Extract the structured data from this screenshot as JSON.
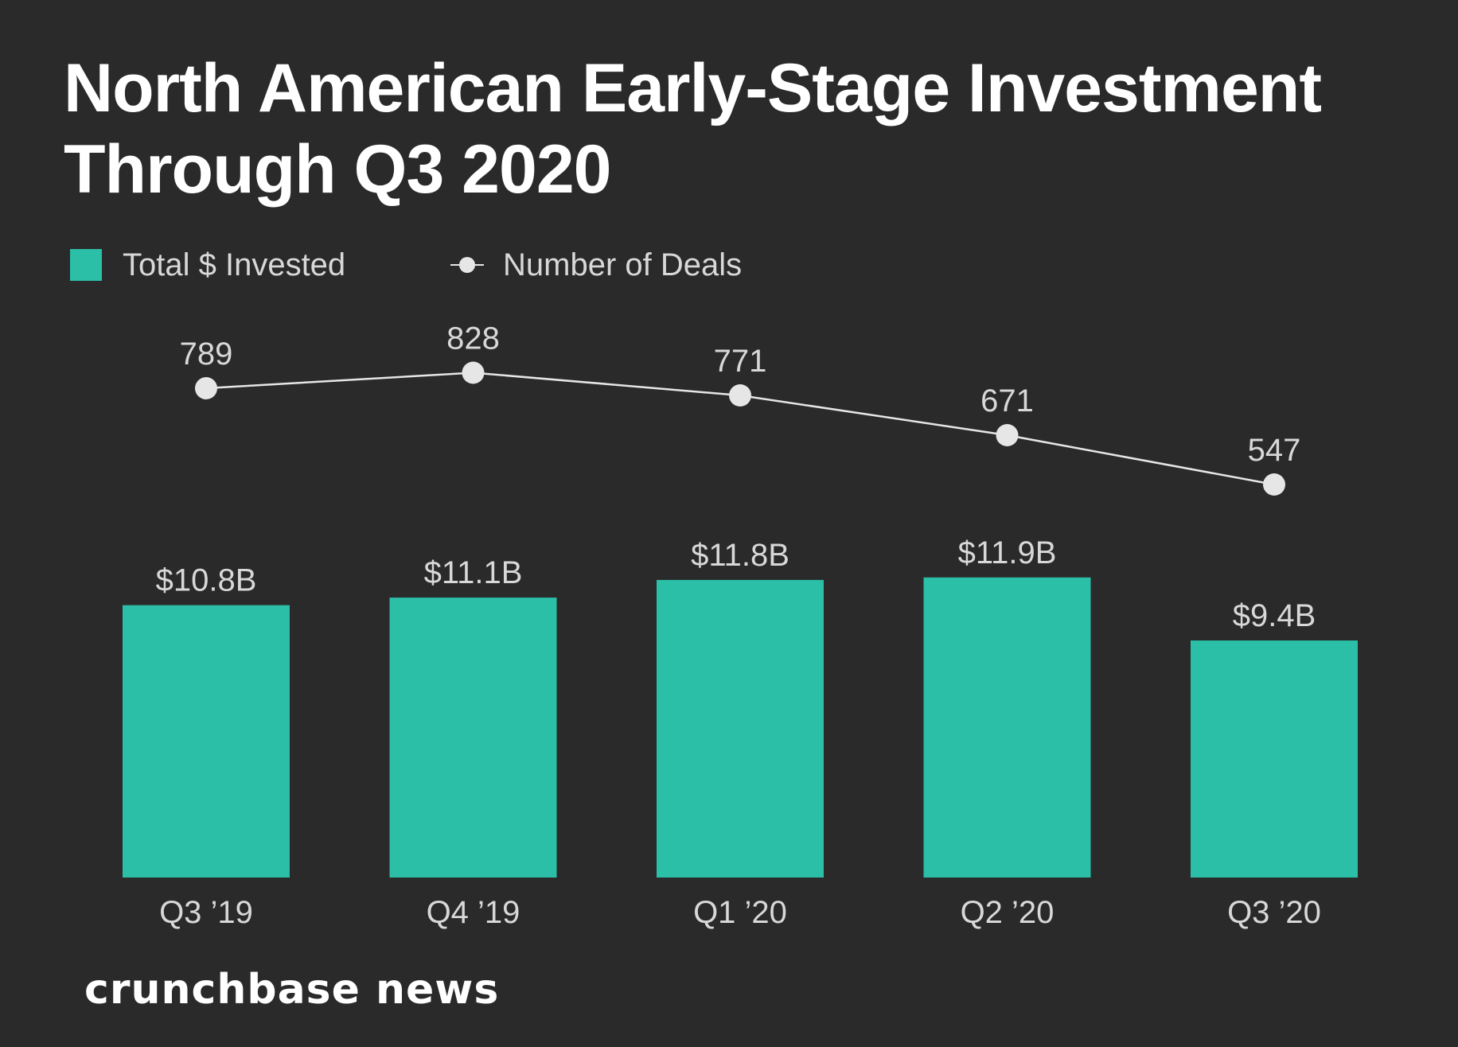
{
  "colors": {
    "background": "#2a2a2a",
    "bar": "#2bbfa8",
    "line": "#e6e6e6",
    "label": "#d8d8d8",
    "title": "#ffffff"
  },
  "chart_data": {
    "type": "bar",
    "title": "North American Early-Stage Investment Through Q3 2020",
    "categories": [
      "Q3 ’19",
      "Q4 ’19",
      "Q1 ’20",
      "Q2 ’20",
      "Q3 ’20"
    ],
    "series": [
      {
        "name": "Total $ Invested",
        "type": "bar",
        "unit": "billion USD",
        "values": [
          10.8,
          11.1,
          11.8,
          11.9,
          9.4
        ],
        "labels": [
          "$10.8B",
          "$11.1B",
          "$11.8B",
          "$11.9B",
          "$9.4B"
        ]
      },
      {
        "name": "Number of Deals",
        "type": "line",
        "values": [
          789,
          828,
          771,
          671,
          547
        ],
        "labels": [
          "789",
          "828",
          "771",
          "671",
          "547"
        ]
      }
    ],
    "xlabel": "",
    "ylabel": "",
    "legend": "top-left",
    "grid": false
  },
  "legend": {
    "bars_label": "Total $ Invested",
    "line_label": "Number of Deals",
    "bars_icon": "square-swatch-icon",
    "line_icon": "line-dot-marker-icon"
  },
  "footer": {
    "brand": "crunchbase news"
  }
}
